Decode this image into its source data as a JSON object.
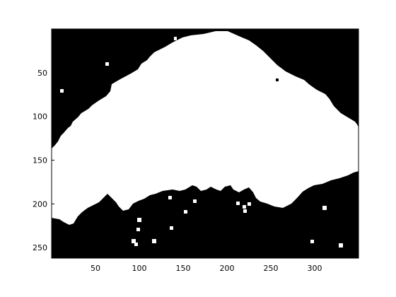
{
  "figure": {
    "description_type": "binary mask image shown on matplotlib-style axes",
    "background": "#ffffff",
    "mask_fg": "#ffffff",
    "mask_bg": "#000000",
    "axis_color": "#000000"
  },
  "axes": {
    "x_ticks": [
      50,
      100,
      150,
      200,
      250,
      300
    ],
    "y_ticks": [
      50,
      100,
      150,
      200,
      250
    ],
    "x_range": [
      0,
      350
    ],
    "y_range": [
      0,
      262
    ]
  }
}
